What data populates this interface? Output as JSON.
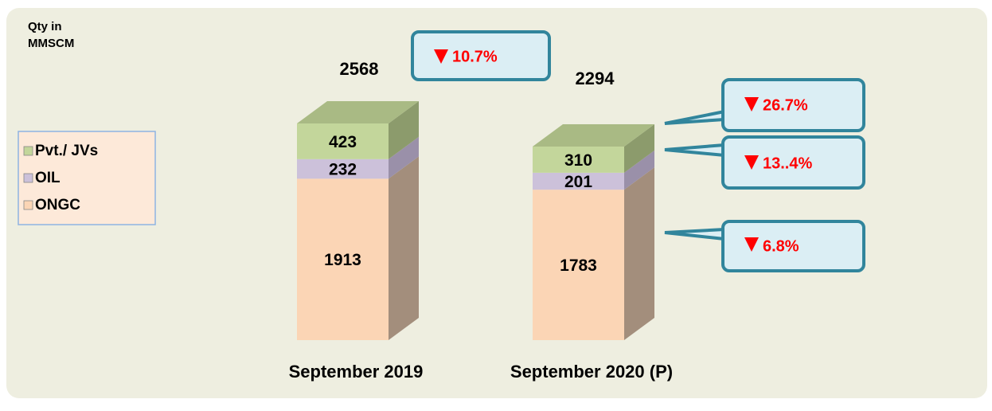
{
  "chart_data": {
    "type": "stacked_bar",
    "unit_label": [
      "Qty in",
      "MMSCM"
    ],
    "categories": [
      "September 2019",
      "September 2020 (P)"
    ],
    "series": [
      {
        "name": "ONGC",
        "color": "#fbd5b5",
        "side_color": "#a38e7c",
        "values": [
          1913,
          1783
        ]
      },
      {
        "name": "OIL",
        "color": "#ccc1da",
        "side_color": "#9a90a9",
        "values": [
          232,
          201
        ]
      },
      {
        "name": "Pvt./ JVs",
        "color": "#c3d69b",
        "side_color": "#8c9b6c",
        "values": [
          423,
          310
        ]
      }
    ],
    "totals": [
      2568,
      2294
    ],
    "annotations": [
      "10.7%",
      "26.7%",
      "13..4%",
      "6.8%"
    ]
  }
}
